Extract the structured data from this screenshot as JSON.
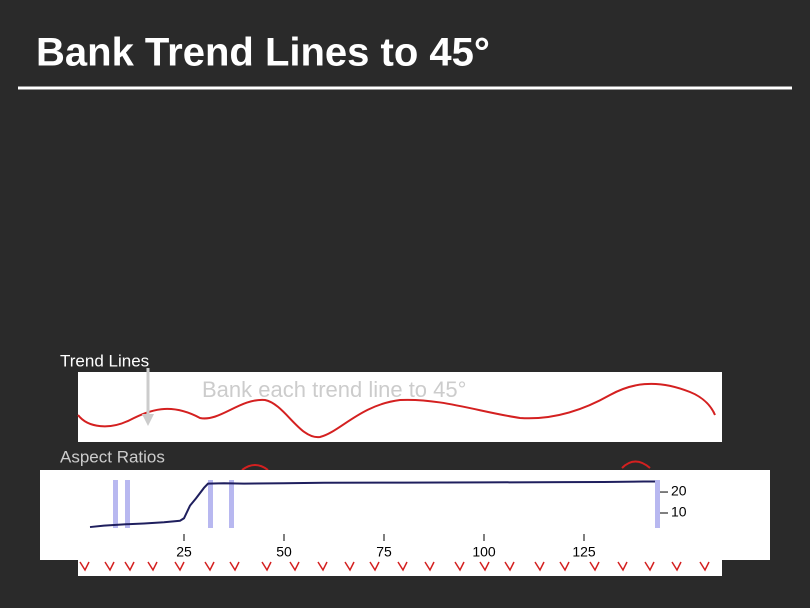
{
  "slide": {
    "title": "Bank Trend Lines to 45°",
    "trend_label": "Trend Lines",
    "bank_label": "Bank each trend line to 45°",
    "aspect_label": "Aspect Ratios"
  },
  "chart_data": {
    "type": "line",
    "x": [
      1.5,
      5,
      10,
      15,
      20,
      24,
      25,
      26.5,
      28,
      30,
      31,
      35,
      40,
      50,
      60,
      80,
      100,
      120,
      130,
      140,
      142.75
    ],
    "series": [
      {
        "color": "#1f1f5e",
        "values": [
          3.3,
          4,
          4.6,
          5,
          5.6,
          6.3,
          7.5,
          13.5,
          17,
          22,
          24,
          24.2,
          24,
          24.2,
          24.4,
          24.5,
          24.6,
          24.7,
          24.8,
          25,
          25
        ]
      }
    ],
    "xlim": [
      -11,
      171.5
    ],
    "ylim": [
      -12.4,
      30.5
    ],
    "xticks": [
      25,
      50,
      75,
      100,
      125
    ],
    "yticks": [
      10,
      20
    ]
  }
}
